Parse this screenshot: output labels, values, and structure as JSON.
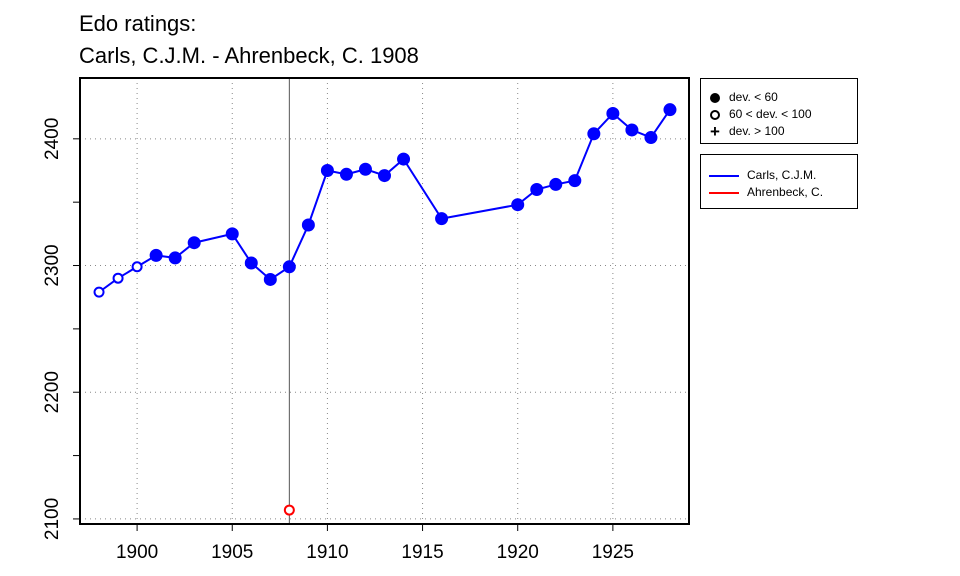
{
  "title_line1": "Edo ratings:",
  "title_line2": "Carls, C.J.M. - Ahrenbeck, C. 1908",
  "legend_symbols": [
    {
      "label": "dev. < 60",
      "symbol": "filled-circle"
    },
    {
      "label": "60 < dev. < 100",
      "symbol": "open-circle"
    },
    {
      "label": "dev. > 100",
      "symbol": "plus"
    }
  ],
  "legend_series": [
    {
      "label": "Carls, C.J.M.",
      "color": "#0000ff"
    },
    {
      "label": "Ahrenbeck, C.",
      "color": "#ff0000"
    }
  ],
  "chart_data": {
    "type": "line",
    "title": "Edo ratings:\nCarls, C.J.M. - Ahrenbeck, C. 1908",
    "xlabel": "",
    "ylabel": "",
    "xlim": [
      1897,
      1929
    ],
    "ylim": [
      2096,
      2448
    ],
    "x_ticks": [
      1900,
      1905,
      1910,
      1915,
      1920,
      1925
    ],
    "y_ticks": [
      2100,
      2200,
      2300,
      2400
    ],
    "grid": true,
    "vline_x": 1908,
    "legend_position": "right",
    "series": [
      {
        "name": "Carls, C.J.M.",
        "color": "#0000ff",
        "points": [
          {
            "x": 1898,
            "y": 2279,
            "marker": "open"
          },
          {
            "x": 1899,
            "y": 2290,
            "marker": "open"
          },
          {
            "x": 1900,
            "y": 2299,
            "marker": "open"
          },
          {
            "x": 1901,
            "y": 2308,
            "marker": "filled"
          },
          {
            "x": 1902,
            "y": 2306,
            "marker": "filled"
          },
          {
            "x": 1903,
            "y": 2318,
            "marker": "filled"
          },
          {
            "x": 1905,
            "y": 2325,
            "marker": "filled"
          },
          {
            "x": 1906,
            "y": 2302,
            "marker": "filled"
          },
          {
            "x": 1907,
            "y": 2289,
            "marker": "filled"
          },
          {
            "x": 1908,
            "y": 2299,
            "marker": "filled"
          },
          {
            "x": 1909,
            "y": 2332,
            "marker": "filled"
          },
          {
            "x": 1910,
            "y": 2375,
            "marker": "filled"
          },
          {
            "x": 1911,
            "y": 2372,
            "marker": "filled"
          },
          {
            "x": 1912,
            "y": 2376,
            "marker": "filled"
          },
          {
            "x": 1913,
            "y": 2371,
            "marker": "filled"
          },
          {
            "x": 1914,
            "y": 2384,
            "marker": "filled"
          },
          {
            "x": 1916,
            "y": 2337,
            "marker": "filled"
          },
          {
            "x": 1920,
            "y": 2348,
            "marker": "filled"
          },
          {
            "x": 1921,
            "y": 2360,
            "marker": "filled"
          },
          {
            "x": 1922,
            "y": 2364,
            "marker": "filled"
          },
          {
            "x": 1923,
            "y": 2367,
            "marker": "filled"
          },
          {
            "x": 1924,
            "y": 2404,
            "marker": "filled"
          },
          {
            "x": 1925,
            "y": 2420,
            "marker": "filled"
          },
          {
            "x": 1926,
            "y": 2407,
            "marker": "filled"
          },
          {
            "x": 1927,
            "y": 2401,
            "marker": "filled"
          },
          {
            "x": 1928,
            "y": 2423,
            "marker": "filled"
          }
        ]
      },
      {
        "name": "Ahrenbeck, C.",
        "color": "#ff0000",
        "points": [
          {
            "x": 1908,
            "y": 2107,
            "marker": "open"
          }
        ]
      }
    ]
  }
}
